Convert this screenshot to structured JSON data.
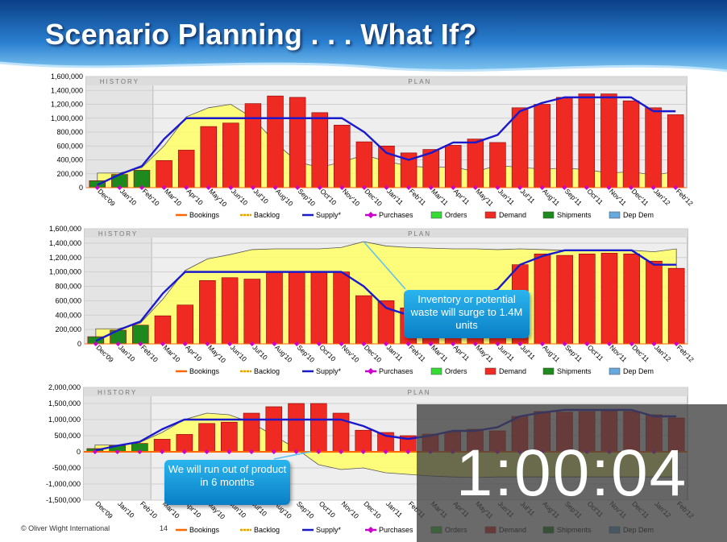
{
  "slide": {
    "title": "Scenario Planning  . . . What If?",
    "footer": "© Oliver Wight International",
    "page_number": "14",
    "timer": "1:00:04",
    "colors": {
      "header_top": "#0a3f86",
      "header_bottom": "#5aaee6",
      "callout": "#1a9ee0",
      "timer_overlay": "#404040"
    }
  },
  "callouts": [
    {
      "text": "Inventory or potential waste will surge to 1.4M units"
    },
    {
      "text": "We will run out of product in 6 months"
    }
  ],
  "chart_data": [
    {
      "type": "bar",
      "panel": "top",
      "section_labels": [
        "HISTORY",
        "PLAN"
      ],
      "categories": [
        "Dec'09",
        "Jan'10",
        "Feb'10",
        "Mar'10",
        "Apr'10",
        "May'10",
        "Jun'10",
        "Jul'10",
        "Aug'10",
        "Sep'10",
        "Oct'10",
        "Nov'10",
        "Dec'10",
        "Jan'11",
        "Feb'11",
        "Mar'11",
        "Apr'11",
        "May'11",
        "Jun'11",
        "Jul'11",
        "Aug'11",
        "Sep'11",
        "Oct'11",
        "Nov'11",
        "Dec'11",
        "Jan'12",
        "Feb'12"
      ],
      "ylim": [
        0,
        1600000
      ],
      "yticks": [
        "0",
        "200,000",
        "400,000",
        "600,000",
        "800,000",
        "1,000,000",
        "1,200,000",
        "1,400,000",
        "1,600,000"
      ],
      "history_count": 3,
      "series": [
        {
          "name": "Shipments",
          "kind": "bar",
          "color": "#1e8a1e",
          "values": [
            100000,
            190000,
            250000,
            null,
            null,
            null,
            null,
            null,
            null,
            null,
            null,
            null,
            null,
            null,
            null,
            null,
            null,
            null,
            null,
            null,
            null,
            null,
            null,
            null,
            null,
            null,
            null
          ]
        },
        {
          "name": "Demand",
          "kind": "bar",
          "color": "#ee2a22",
          "values": [
            null,
            null,
            null,
            390000,
            540000,
            880000,
            930000,
            1210000,
            1320000,
            1300000,
            1080000,
            900000,
            660000,
            600000,
            500000,
            550000,
            610000,
            700000,
            650000,
            1150000,
            1200000,
            1300000,
            1350000,
            1350000,
            1250000,
            1150000,
            1050000
          ]
        },
        {
          "name": "Inventory",
          "kind": "area",
          "color": "#ffff66",
          "values": [
            210000,
            210000,
            290000,
            600000,
            1020000,
            1150000,
            1200000,
            1000000,
            650000,
            370000,
            290000,
            370000,
            470000,
            380000,
            310000,
            290000,
            300000,
            230000,
            320000,
            290000,
            270000,
            280000,
            260000,
            210000,
            230000,
            180000,
            230000
          ]
        },
        {
          "name": "Supply*",
          "kind": "line",
          "color": "#1a1acc",
          "values": [
            40000,
            190000,
            310000,
            700000,
            1000000,
            1000000,
            1000000,
            1000000,
            1000000,
            1000000,
            1000000,
            1000000,
            800000,
            500000,
            400000,
            500000,
            650000,
            650000,
            760000,
            1100000,
            1220000,
            1300000,
            1300000,
            1300000,
            1300000,
            1100000,
            1100000
          ]
        }
      ],
      "legend": [
        "Bookings",
        "Backlog",
        "Supply*",
        "Purchases",
        "Orders",
        "Demand",
        "Shipments",
        "Dep Dem"
      ]
    },
    {
      "type": "bar",
      "panel": "middle",
      "section_labels": [
        "HISTORY",
        "PLAN"
      ],
      "categories": [
        "Dec'09",
        "Jan'10",
        "Feb'10",
        "Mar'10",
        "Apr'10",
        "May'10",
        "Jun'10",
        "Jul'10",
        "Aug'10",
        "Sep'10",
        "Oct'10",
        "Nov'10",
        "Dec'10",
        "Jan'11",
        "Feb'11",
        "Mar'11",
        "Apr'11",
        "May'11",
        "Jun'11",
        "Jul'11",
        "Aug'11",
        "Sep'11",
        "Oct'11",
        "Nov'11",
        "Dec'11",
        "Jan'12",
        "Feb'12"
      ],
      "ylim": [
        0,
        1600000
      ],
      "yticks": [
        "0",
        "200,000",
        "400,000",
        "600,000",
        "800,000",
        "1,000,000",
        "1,200,000",
        "1,400,000",
        "1,600,000"
      ],
      "history_count": 3,
      "series": [
        {
          "name": "Shipments",
          "kind": "bar",
          "color": "#1e8a1e",
          "values": [
            100000,
            190000,
            260000,
            null,
            null,
            null,
            null,
            null,
            null,
            null,
            null,
            null,
            null,
            null,
            null,
            null,
            null,
            null,
            null,
            null,
            null,
            null,
            null,
            null,
            null,
            null,
            null
          ]
        },
        {
          "name": "Demand",
          "kind": "bar",
          "color": "#ee2a22",
          "values": [
            null,
            null,
            null,
            390000,
            540000,
            880000,
            920000,
            900000,
            1000000,
            1000000,
            1000000,
            1000000,
            670000,
            600000,
            500000,
            550000,
            610000,
            700000,
            650000,
            1100000,
            1250000,
            1230000,
            1250000,
            1260000,
            1250000,
            1150000,
            1050000
          ]
        },
        {
          "name": "Inventory",
          "kind": "area",
          "color": "#ffff66",
          "values": [
            210000,
            210000,
            290000,
            620000,
            1020000,
            1180000,
            1240000,
            1310000,
            1320000,
            1320000,
            1320000,
            1340000,
            1420000,
            1360000,
            1340000,
            1330000,
            1320000,
            1320000,
            1310000,
            1320000,
            1310000,
            1300000,
            1300000,
            1300000,
            1300000,
            1280000,
            1320000
          ]
        },
        {
          "name": "Supply*",
          "kind": "line",
          "color": "#1a1acc",
          "values": [
            40000,
            190000,
            310000,
            700000,
            1000000,
            1000000,
            1000000,
            1000000,
            1000000,
            1000000,
            1000000,
            1000000,
            800000,
            500000,
            400000,
            500000,
            650000,
            650000,
            760000,
            1100000,
            1220000,
            1300000,
            1300000,
            1300000,
            1300000,
            1100000,
            1100000
          ]
        }
      ],
      "legend": [
        "Bookings",
        "Backlog",
        "Supply*",
        "Purchases",
        "Orders",
        "Demand",
        "Shipments",
        "Dep Dem"
      ]
    },
    {
      "type": "bar",
      "panel": "bottom",
      "section_labels": [
        "HISTORY",
        "PLAN"
      ],
      "categories": [
        "Dec'09",
        "Jan'10",
        "Feb'10",
        "Mar'10",
        "Apr'10",
        "May'10",
        "Jun'10",
        "Jul'10",
        "Aug'10",
        "Sep'10",
        "Oct'10",
        "Nov'10",
        "Dec'10",
        "Jan'11",
        "Feb'11",
        "Mar'11",
        "Apr'11",
        "May'11",
        "Jun'11",
        "Jul'11",
        "Aug'11",
        "Sep'11",
        "Oct'11",
        "Nov'11",
        "Dec'11",
        "Jan'12",
        "Feb'12"
      ],
      "ylim": [
        -1500000,
        2000000
      ],
      "yticks": [
        "-1,500,000",
        "-1,000,000",
        "-500,000",
        "0",
        "500,000",
        "1,000,000",
        "1,500,000",
        "2,000,000"
      ],
      "history_count": 3,
      "series": [
        {
          "name": "Shipments",
          "kind": "bar",
          "color": "#1e8a1e",
          "values": [
            100000,
            190000,
            260000,
            null,
            null,
            null,
            null,
            null,
            null,
            null,
            null,
            null,
            null,
            null,
            null,
            null,
            null,
            null,
            null,
            null,
            null,
            null,
            null,
            null,
            null,
            null,
            null
          ]
        },
        {
          "name": "Demand",
          "kind": "bar",
          "color": "#ee2a22",
          "values": [
            null,
            null,
            null,
            390000,
            540000,
            880000,
            920000,
            1200000,
            1400000,
            1500000,
            1500000,
            1200000,
            670000,
            600000,
            500000,
            550000,
            610000,
            700000,
            650000,
            1100000,
            1250000,
            1230000,
            1250000,
            1260000,
            1250000,
            1150000,
            1050000
          ]
        },
        {
          "name": "Inventory",
          "kind": "area",
          "color": "#ffff66",
          "values": [
            210000,
            210000,
            290000,
            600000,
            1000000,
            1200000,
            1150000,
            900000,
            500000,
            100000,
            -400000,
            -550000,
            -500000,
            -650000,
            -700000,
            -750000,
            -780000,
            -800000,
            -780000,
            -780000,
            -780000,
            -780000,
            -780000,
            -780000,
            -780000,
            -780000,
            -780000
          ]
        },
        {
          "name": "Supply*",
          "kind": "line",
          "color": "#1a1acc",
          "values": [
            40000,
            190000,
            310000,
            700000,
            1000000,
            1000000,
            1000000,
            1000000,
            1000000,
            1000000,
            1000000,
            1000000,
            800000,
            500000,
            400000,
            500000,
            650000,
            650000,
            760000,
            1100000,
            1220000,
            1300000,
            1300000,
            1300000,
            1300000,
            1100000,
            1100000
          ]
        }
      ],
      "legend": [
        "Bookings",
        "Backlog",
        "Supply*",
        "Purchases",
        "Orders",
        "Demand",
        "Shipments",
        "Dep Dem"
      ]
    }
  ]
}
